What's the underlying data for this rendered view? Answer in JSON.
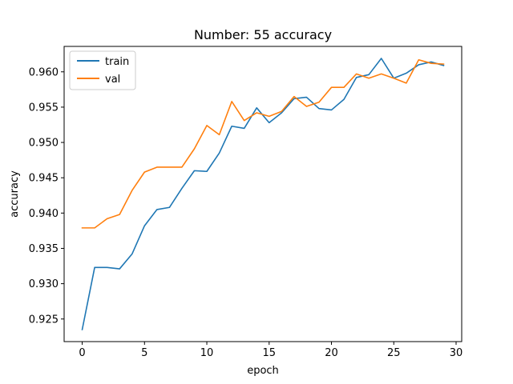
{
  "chart_data": {
    "type": "line",
    "title": "Number: 55 accuracy",
    "xlabel": "epoch",
    "ylabel": "accuracy",
    "xlim": [
      -1.45,
      30.45
    ],
    "ylim": [
      0.9218,
      0.9636
    ],
    "xticks": [
      0,
      5,
      10,
      15,
      20,
      25,
      30
    ],
    "yticks": [
      0.925,
      0.93,
      0.935,
      0.94,
      0.945,
      0.95,
      0.955,
      0.96
    ],
    "ytick_labels": [
      "0.925",
      "0.930",
      "0.935",
      "0.940",
      "0.945",
      "0.950",
      "0.955",
      "0.960"
    ],
    "grid": false,
    "legend_position": "top-left",
    "x": [
      0,
      1,
      2,
      3,
      4,
      5,
      6,
      7,
      8,
      9,
      10,
      11,
      12,
      13,
      14,
      15,
      16,
      17,
      18,
      19,
      20,
      21,
      22,
      23,
      24,
      25,
      26,
      27,
      28,
      29
    ],
    "series": [
      {
        "name": "train",
        "color": "#1f77b4",
        "values": [
          0.9235,
          0.9323,
          0.9323,
          0.9321,
          0.9342,
          0.9382,
          0.9405,
          0.9408,
          0.9435,
          0.946,
          0.9459,
          0.9485,
          0.9523,
          0.952,
          0.9549,
          0.9528,
          0.9542,
          0.9562,
          0.9564,
          0.9548,
          0.9546,
          0.9561,
          0.9592,
          0.9596,
          0.9619,
          0.9591,
          0.9598,
          0.961,
          0.9614,
          0.9609
        ]
      },
      {
        "name": "val",
        "color": "#ff7f0e",
        "values": [
          0.9379,
          0.9379,
          0.9392,
          0.9398,
          0.9432,
          0.9458,
          0.9465,
          0.9465,
          0.9465,
          0.9491,
          0.9524,
          0.9511,
          0.9558,
          0.9531,
          0.9542,
          0.9537,
          0.9544,
          0.9565,
          0.9551,
          0.9557,
          0.9578,
          0.9578,
          0.9597,
          0.9591,
          0.9597,
          0.9591,
          0.9584,
          0.9617,
          0.9612,
          0.9611
        ]
      }
    ]
  }
}
